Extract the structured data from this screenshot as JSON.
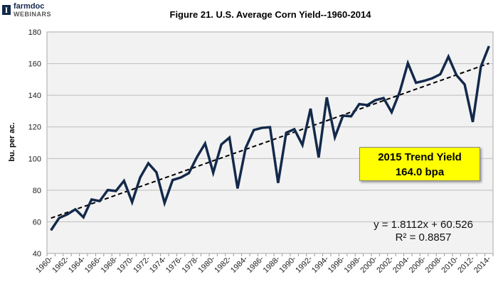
{
  "logo": {
    "text1": "farmdoc",
    "text2": "WEBINARS"
  },
  "chart_data": {
    "type": "line",
    "title": "Figure 21. U.S. Average Corn Yield--1960-2014",
    "ylabel": "bu. per ac.",
    "xlabel": "",
    "ylim": [
      40,
      180
    ],
    "yticks": [
      40,
      60,
      80,
      100,
      120,
      140,
      160,
      180
    ],
    "grid": true,
    "x": [
      1960,
      1961,
      1962,
      1963,
      1964,
      1965,
      1966,
      1967,
      1968,
      1969,
      1970,
      1971,
      1972,
      1973,
      1974,
      1975,
      1976,
      1977,
      1978,
      1979,
      1980,
      1981,
      1982,
      1983,
      1984,
      1985,
      1986,
      1987,
      1988,
      1989,
      1990,
      1991,
      1992,
      1993,
      1994,
      1995,
      1996,
      1997,
      1998,
      1999,
      2000,
      2001,
      2002,
      2003,
      2004,
      2005,
      2006,
      2007,
      2008,
      2009,
      2010,
      2011,
      2012,
      2013,
      2014
    ],
    "xtick_labels": [
      "1960-",
      "1962-",
      "1964-",
      "1966-",
      "1968-",
      "1970-",
      "1972-",
      "1974-",
      "1976-",
      "1978-",
      "1980-",
      "1982-",
      "1984-",
      "1986-",
      "1988-",
      "1990-",
      "1992-",
      "1994-",
      "1996-",
      "1998-",
      "2000-",
      "2002-",
      "2004-",
      "2006-",
      "2008-",
      "2010-",
      "2012-",
      "2014-"
    ],
    "series": [
      {
        "values": [
          54.7,
          62.4,
          64.7,
          67.9,
          62.9,
          74.1,
          73.1,
          80.1,
          79.5,
          85.9,
          72.4,
          88.1,
          97.0,
          91.3,
          71.9,
          86.4,
          88.0,
          90.8,
          101.0,
          109.5,
          91.0,
          108.9,
          113.2,
          81.1,
          106.7,
          118.0,
          119.4,
          119.8,
          84.6,
          116.3,
          118.5,
          108.6,
          131.5,
          100.7,
          138.6,
          113.5,
          127.1,
          126.7,
          134.4,
          133.8,
          136.9,
          138.2,
          129.3,
          142.2,
          160.3,
          147.9,
          149.1,
          150.7,
          153.3,
          164.4,
          152.6,
          146.8,
          123.1,
          158.1,
          171.0
        ],
        "color": "#13294b"
      }
    ],
    "trendline": {
      "slope": 1.8112,
      "intercept": 60.526,
      "style": "dashed",
      "color": "#000000"
    },
    "annotations": {
      "trend_box_line1": "2015 Trend Yield",
      "trend_box_line2": "164.0 bpa",
      "trend_box_color": "#ffff00",
      "equation": "y = 1.8112x + 60.526",
      "r_squared": "R² = 0.8857"
    }
  }
}
